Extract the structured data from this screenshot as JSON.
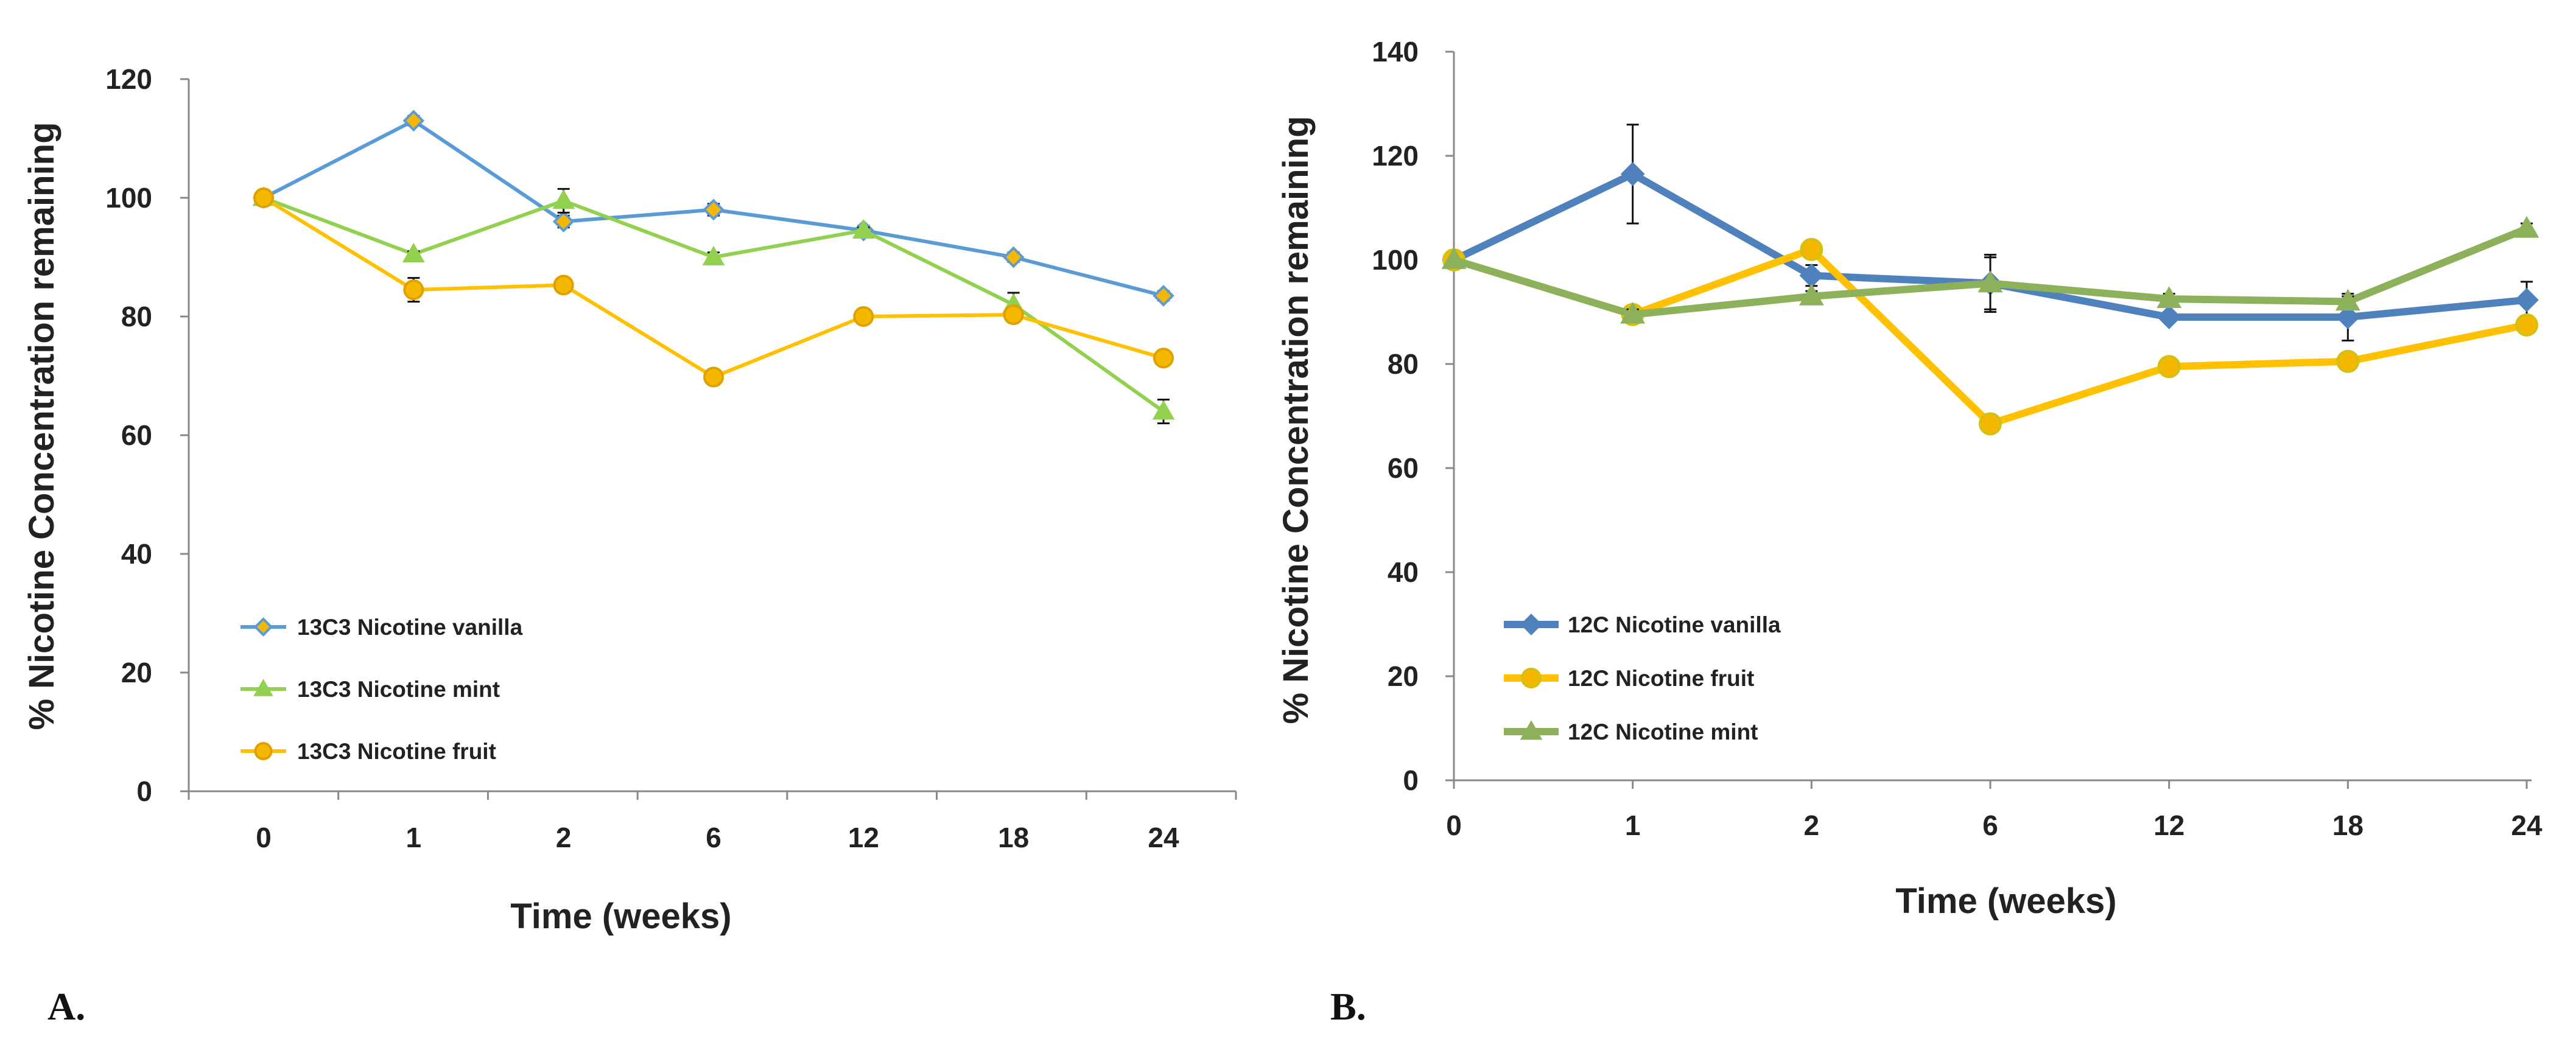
{
  "colors": {
    "vanilla_A": "#5B9BD5",
    "mint_A": "#92D050",
    "fruit_A": "#FFC000",
    "vanilla_B": "#4F81BD",
    "fruit_B": "#FFC000",
    "mint_B": "#8DB15A",
    "marker_fill": "#F5B800"
  },
  "chart_data": [
    {
      "panel": "A.",
      "type": "line",
      "categories": [
        "0",
        "1",
        "2",
        "6",
        "12",
        "18",
        "24"
      ],
      "xlabel": "Time (weeks)",
      "ylabel": "% Nicotine Concentration remaining",
      "ylim": [
        0,
        120
      ],
      "yticks": [
        0,
        20,
        40,
        60,
        80,
        100,
        120
      ],
      "legend_position": "bottom-left",
      "series": [
        {
          "name": "13C3 Nicotine vanilla",
          "marker": "diamond",
          "values": [
            100,
            113,
            96,
            98,
            94.5,
            90,
            83.5
          ],
          "errors": [
            0,
            0.8,
            1,
            1,
            0.8,
            0.8,
            0.8
          ]
        },
        {
          "name": "13C3 Nicotine mint",
          "marker": "triangle",
          "values": [
            100,
            90.5,
            99.5,
            90,
            94.5,
            82,
            64
          ],
          "errors": [
            0,
            0.5,
            2,
            0.8,
            0.5,
            2,
            2
          ]
        },
        {
          "name": "13C3 Nicotine fruit",
          "marker": "circle",
          "values": [
            100,
            84.5,
            85.3,
            69.8,
            80,
            80.3,
            73
          ],
          "errors": [
            0,
            2,
            0.5,
            0.5,
            0.5,
            0.5,
            0.5
          ]
        }
      ]
    },
    {
      "panel": "B.",
      "type": "line",
      "categories": [
        "0",
        "1",
        "2",
        "6",
        "12",
        "18",
        "24"
      ],
      "xlabel": "Time (weeks)",
      "ylabel": "% Nicotine Concentration remaining",
      "ylim": [
        0,
        140
      ],
      "yticks": [
        0,
        20,
        40,
        60,
        80,
        100,
        120,
        140
      ],
      "legend_position": "bottom-left",
      "series": [
        {
          "name": "12C Nicotine vanilla",
          "marker": "diamond",
          "values": [
            100,
            116.5,
            97,
            95.5,
            89,
            89,
            92.3
          ],
          "errors": [
            0,
            9.5,
            2,
            5.5,
            1,
            4.5,
            3.5
          ]
        },
        {
          "name": "12C Nicotine fruit",
          "marker": "circle",
          "values": [
            100,
            89.5,
            102,
            68.5,
            79.5,
            80.5,
            87.5
          ],
          "errors": [
            0,
            1,
            1,
            0.5,
            0.5,
            0.5,
            1
          ]
        },
        {
          "name": "12C Nicotine mint",
          "marker": "triangle",
          "values": [
            100,
            89.5,
            93,
            95.5,
            92.5,
            92,
            106
          ],
          "errors": [
            0,
            1,
            1,
            5,
            1,
            1,
            1
          ]
        }
      ]
    }
  ]
}
